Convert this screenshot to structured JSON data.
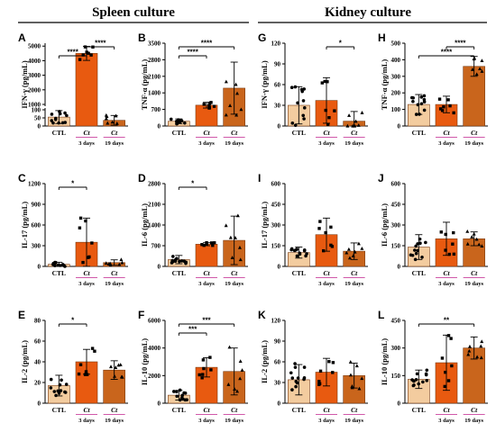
{
  "figure": {
    "left_title": "Spleen culture",
    "right_title": "Kidney culture",
    "categories": [
      "CTL",
      "Ct",
      "Ct"
    ],
    "category_days": [
      "",
      "3 days",
      "19 days"
    ],
    "colors": {
      "ctl_fill": "#f3cc9f",
      "ct3_fill": "#e85a10",
      "ct19_fill": "#c9651c",
      "bar_edge": "#7a3a10",
      "axis": "#000000",
      "magenta": "#c0208c"
    }
  },
  "chart_data": [
    {
      "id": "A",
      "type": "bar",
      "ylabel": "IFN-γ (pg/mL)",
      "yticks": [
        0,
        50,
        100,
        1000,
        2000,
        3000,
        4000,
        5000
      ],
      "ylim": [
        0,
        5200
      ],
      "broken_axis": true,
      "values": [
        55,
        4500,
        35
      ],
      "errors": [
        40,
        480,
        30
      ],
      "significance": [
        {
          "from": 0,
          "to": 1,
          "label": "****"
        },
        {
          "from": 1,
          "to": 2,
          "label": "****"
        }
      ]
    },
    {
      "id": "B",
      "type": "bar",
      "ylabel": "TNF-α (pg/mL)",
      "yticks": [
        0,
        700,
        1400,
        2100,
        2800,
        3500
      ],
      "ylim": [
        0,
        3500
      ],
      "values": [
        200,
        880,
        1600
      ],
      "errors": [
        100,
        120,
        1100
      ],
      "significance": [
        {
          "from": 0,
          "to": 1,
          "label": "****"
        },
        {
          "from": 0,
          "to": 2,
          "label": "****"
        }
      ]
    },
    {
      "id": "C",
      "type": "bar",
      "ylabel": "IL-17 (pg/mL)",
      "yticks": [
        0,
        300,
        600,
        900,
        1200
      ],
      "ylim": [
        0,
        1200
      ],
      "values": [
        30,
        350,
        55
      ],
      "errors": [
        30,
        350,
        40
      ],
      "significance": [
        {
          "from": 0,
          "to": 1,
          "label": "*"
        }
      ]
    },
    {
      "id": "D",
      "type": "bar",
      "ylabel": "IL-6 (pg/mL)",
      "yticks": [
        0,
        700,
        1400,
        2100,
        2800
      ],
      "ylim": [
        0,
        2800
      ],
      "values": [
        230,
        750,
        880
      ],
      "errors": [
        140,
        50,
        820
      ],
      "significance": [
        {
          "from": 0,
          "to": 1,
          "label": "*"
        }
      ]
    },
    {
      "id": "E",
      "type": "bar",
      "ylabel": "IL-2 (pg/mL)",
      "yticks": [
        0,
        20,
        40,
        60,
        80
      ],
      "ylim": [
        0,
        80
      ],
      "values": [
        17,
        40,
        32
      ],
      "errors": [
        10,
        12,
        9
      ],
      "significance": [
        {
          "from": 0,
          "to": 1,
          "label": "*"
        }
      ]
    },
    {
      "id": "F",
      "type": "bar",
      "ylabel": "IL-10 (pg/mL)",
      "yticks": [
        0,
        2000,
        4000,
        6000
      ],
      "ylim": [
        0,
        6000
      ],
      "values": [
        580,
        2600,
        2300
      ],
      "errors": [
        350,
        700,
        1700
      ],
      "significance": [
        {
          "from": 0,
          "to": 1,
          "label": "***"
        },
        {
          "from": 0,
          "to": 2,
          "label": "***"
        }
      ]
    },
    {
      "id": "G",
      "type": "bar",
      "ylabel": "IFN-γ (pg/mL)",
      "yticks": [
        0,
        30,
        60,
        90,
        120
      ],
      "ylim": [
        0,
        120
      ],
      "values": [
        30,
        37,
        7
      ],
      "errors": [
        27,
        33,
        14
      ],
      "significance": [
        {
          "from": 1,
          "to": 2,
          "label": "*"
        }
      ]
    },
    {
      "id": "H",
      "type": "bar",
      "ylabel": "TNF-α (pg/mL)",
      "yticks": [
        0,
        100,
        200,
        300,
        400,
        500
      ],
      "ylim": [
        0,
        500
      ],
      "values": [
        130,
        130,
        360
      ],
      "errors": [
        60,
        50,
        60
      ],
      "significance": [
        {
          "from": 0,
          "to": 2,
          "label": "****"
        },
        {
          "from": 1,
          "to": 2,
          "label": "****"
        }
      ]
    },
    {
      "id": "I",
      "type": "bar",
      "ylabel": "IL-17 (pg/mL)",
      "yticks": [
        0,
        150,
        300,
        450,
        600
      ],
      "ylim": [
        0,
        600
      ],
      "values": [
        100,
        230,
        110
      ],
      "errors": [
        40,
        120,
        60
      ],
      "significance": []
    },
    {
      "id": "J",
      "type": "bar",
      "ylabel": "IL-6 (pg/mL)",
      "yticks": [
        0,
        150,
        300,
        450,
        600
      ],
      "ylim": [
        0,
        600
      ],
      "values": [
        140,
        200,
        200
      ],
      "errors": [
        90,
        120,
        50
      ],
      "significance": []
    },
    {
      "id": "K",
      "type": "bar",
      "ylabel": "IL-2 (pg/mL)",
      "yticks": [
        0,
        30,
        60,
        90,
        120
      ],
      "ylim": [
        0,
        120
      ],
      "values": [
        34,
        45,
        40
      ],
      "errors": [
        22,
        20,
        18
      ],
      "significance": []
    },
    {
      "id": "L",
      "type": "bar",
      "ylabel": "IL-10 (pg/mL)",
      "yticks": [
        0,
        150,
        300,
        450
      ],
      "ylim": [
        0,
        450
      ],
      "values": [
        130,
        220,
        300
      ],
      "errors": [
        50,
        150,
        60
      ],
      "significance": [
        {
          "from": 0,
          "to": 2,
          "label": "**"
        }
      ]
    }
  ]
}
